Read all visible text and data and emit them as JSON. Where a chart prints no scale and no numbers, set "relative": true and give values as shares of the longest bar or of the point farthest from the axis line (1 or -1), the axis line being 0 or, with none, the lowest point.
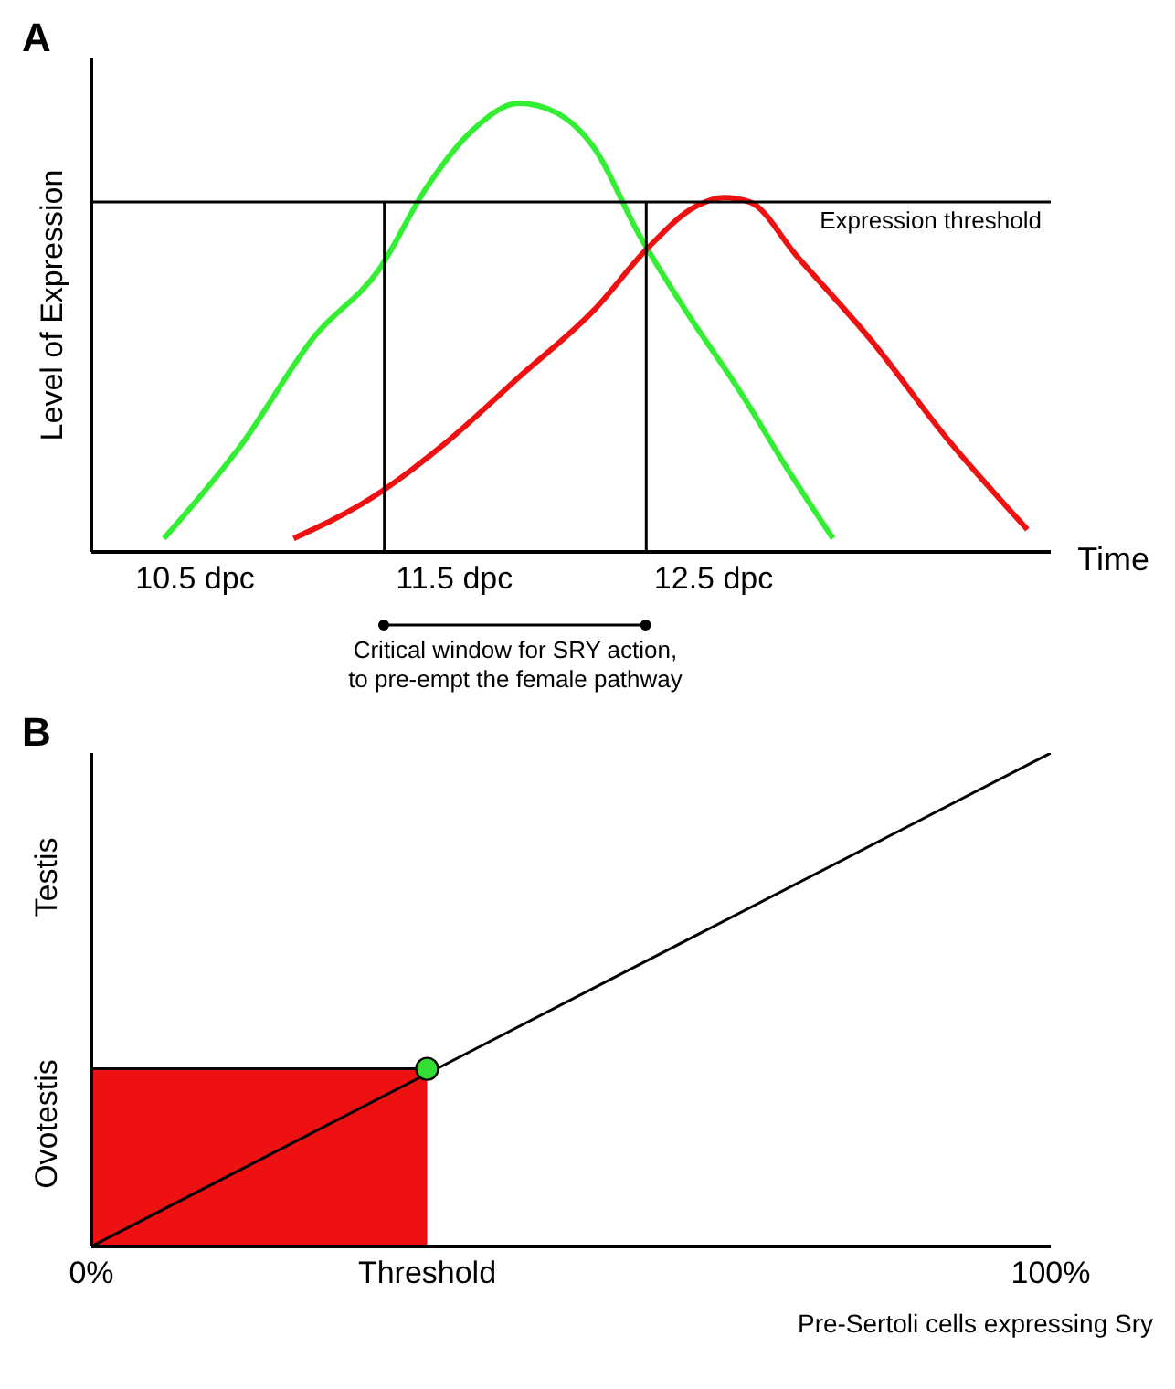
{
  "chart_data": [
    {
      "type": "line",
      "title": "A",
      "ylabel": "Level of Expression",
      "xlabel": "Time",
      "relative": true,
      "tick_labels": "x",
      "grid": false,
      "legend": false,
      "xlim": [
        10.1,
        13.8
      ],
      "xticks": [
        {
          "value": 10.5,
          "label": "10.5 dpc"
        },
        {
          "value": 11.5,
          "label": "11.5 dpc"
        },
        {
          "value": 12.5,
          "label": "12.5 dpc"
        }
      ],
      "series": [
        {
          "color": "#33ee33",
          "x": [
            10.38,
            10.68,
            10.96,
            11.21,
            11.39,
            11.57,
            11.75,
            11.89,
            12.04,
            12.21,
            12.39,
            12.61,
            12.79,
            12.96
          ],
          "values": [
            0.03,
            0.24,
            0.48,
            0.63,
            0.81,
            0.94,
            1.0,
            0.98,
            0.9,
            0.71,
            0.54,
            0.35,
            0.18,
            0.03
          ]
        },
        {
          "color": "#ee1111",
          "x": [
            10.88,
            11.18,
            11.46,
            11.75,
            12.04,
            12.25,
            12.43,
            12.54,
            12.64,
            12.82,
            13.11,
            13.39,
            13.71
          ],
          "values": [
            0.03,
            0.12,
            0.24,
            0.39,
            0.54,
            0.68,
            0.77,
            0.79,
            0.78,
            0.66,
            0.47,
            0.26,
            0.05
          ]
        }
      ],
      "ref_lines": [
        {
          "axis": "y",
          "value": 0.78,
          "label": "Expression threshold",
          "color": "#000000"
        },
        {
          "axis": "x",
          "value": 11.23,
          "color": "#000000"
        },
        {
          "axis": "x",
          "value": 12.24,
          "color": "#000000"
        }
      ],
      "annotations": [
        "Critical window for SRY action, to pre-empt the female pathway"
      ]
    },
    {
      "type": "line",
      "title": "B",
      "xlabel": "Pre-Sertoli cells expressing Sry",
      "relative": true,
      "tick_labels": "x",
      "grid": false,
      "legend": false,
      "xlim": [
        0,
        100
      ],
      "annotations": [
        "Ovotestis",
        "Testis"
      ],
      "xticks": [
        {
          "value": 0,
          "label": "0%"
        },
        {
          "value": 35,
          "label": "Threshold"
        },
        {
          "value": 100,
          "label": "100%"
        }
      ],
      "series": [
        {
          "type": "area",
          "color": "#ee1111",
          "x": [
            0,
            35
          ],
          "values": [
            0.36,
            0.36
          ]
        },
        {
          "color": "#000000",
          "x": [
            0,
            100
          ],
          "values": [
            0,
            1
          ]
        },
        {
          "type": "scatter",
          "color": "#33dd33",
          "x": [
            35
          ],
          "values": [
            0.36
          ]
        }
      ]
    }
  ]
}
